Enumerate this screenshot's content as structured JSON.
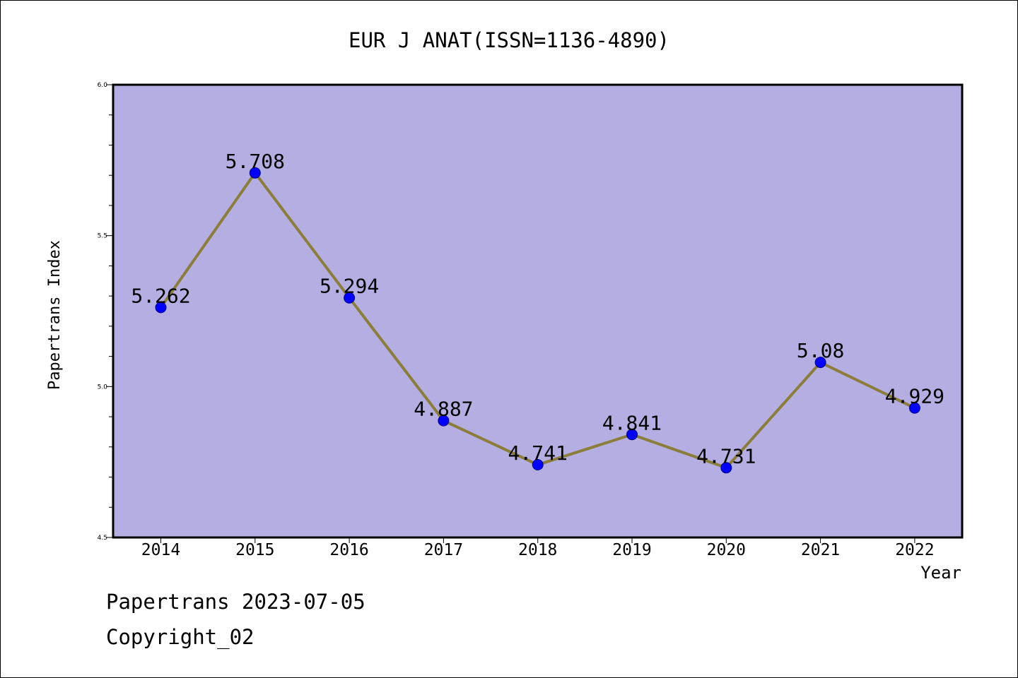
{
  "footer": {
    "line1": "Papertrans 2023-07-05",
    "line2": "Copyright_02"
  },
  "colors": {
    "plot_background": "#b5aee2",
    "line": "#8b7d3a",
    "marker": "#0000ff",
    "marker_edge": "#000080"
  },
  "chart_data": {
    "type": "line",
    "title": "EUR J ANAT(ISSN=1136-4890)",
    "xlabel": "Year",
    "ylabel": "Papertrans Index",
    "categories": [
      "2014",
      "2015",
      "2016",
      "2017",
      "2018",
      "2019",
      "2020",
      "2021",
      "2022"
    ],
    "series": [
      {
        "values": [
          5.262,
          5.708,
          5.294,
          4.887,
          4.741,
          4.841,
          4.731,
          5.08,
          4.929
        ],
        "labels": [
          "5.262",
          "5.708",
          "5.294",
          "4.887",
          "4.741",
          "4.841",
          "4.731",
          "5.08",
          "4.929"
        ]
      }
    ],
    "ylim": [
      4.5,
      6.0
    ],
    "yticks": [
      "4.5",
      "5.0",
      "5.5",
      "6.0"
    ],
    "grid": false,
    "legend": "none"
  }
}
